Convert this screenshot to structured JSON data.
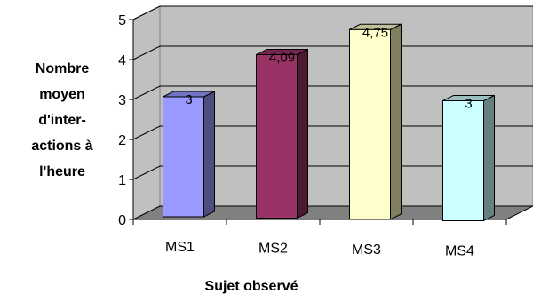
{
  "chart_data": {
    "type": "bar",
    "categories": [
      "MS1",
      "MS2",
      "MS3",
      "MS4"
    ],
    "values": [
      3,
      4.09,
      4.75,
      3
    ],
    "data_labels": [
      "3",
      "4,09",
      "4,75",
      "3"
    ],
    "ylabel_lines": [
      "Nombre",
      "moyen",
      "d'inter-",
      "actions à",
      "l'heure"
    ],
    "xlabel": "Sujet observé",
    "ylim": [
      0,
      5
    ],
    "yticks": [
      "0",
      "1",
      "2",
      "3",
      "4",
      "5"
    ],
    "grid": true,
    "style": "3d",
    "colors": {
      "front": [
        "#9999FF",
        "#993366",
        "#FFFFCC",
        "#CCFFFF"
      ],
      "side": [
        "#4D4D80",
        "#4D1A33",
        "#80805F",
        "#668080"
      ],
      "top": [
        "#7373BF",
        "#73264D",
        "#BFBF99",
        "#99BFBF"
      ],
      "wall": "#C0C0C0",
      "floor": "#808080"
    }
  }
}
